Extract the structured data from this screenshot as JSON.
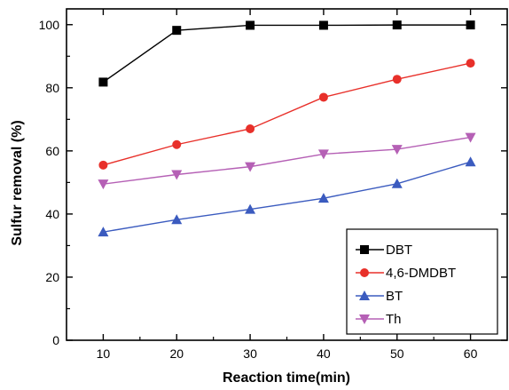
{
  "chart_data": {
    "type": "line",
    "xlabel": "Reaction time(min)",
    "ylabel": "Sulfur removal (%)",
    "x": [
      10,
      20,
      30,
      40,
      50,
      60
    ],
    "xlim": [
      5,
      65
    ],
    "ylim": [
      0,
      105
    ],
    "xticks": [
      10,
      20,
      30,
      40,
      50,
      60
    ],
    "yticks": [
      0,
      20,
      40,
      60,
      80,
      100
    ],
    "grid": false,
    "legend_position": "bottom-right",
    "series": [
      {
        "name": "DBT",
        "values": [
          81.8,
          98.2,
          99.8,
          99.8,
          99.9,
          99.9
        ],
        "color": "#000000",
        "marker": "square"
      },
      {
        "name": "4,6-DMDBT",
        "values": [
          55.5,
          62.0,
          67.0,
          77.0,
          82.7,
          87.8
        ],
        "color": "#e8302a",
        "marker": "circle"
      },
      {
        "name": "BT",
        "values": [
          34.3,
          38.2,
          41.5,
          45.0,
          49.6,
          56.5
        ],
        "color": "#3b5bbf",
        "marker": "triangle-up"
      },
      {
        "name": "Th",
        "values": [
          49.5,
          52.5,
          55.0,
          59.0,
          60.5,
          64.3
        ],
        "color": "#b560b5",
        "marker": "triangle-down"
      }
    ]
  }
}
